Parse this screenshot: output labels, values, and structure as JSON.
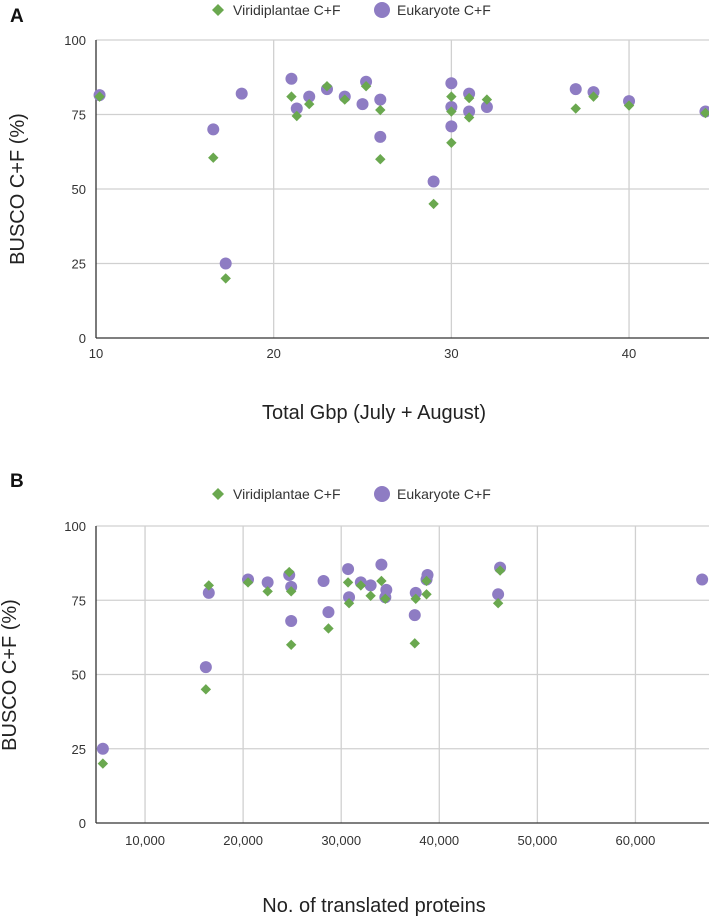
{
  "colors": {
    "viridiplantae": "#6aa84f",
    "eukaryote": "#8e7cc3",
    "grid": "#d0d0d0"
  },
  "chart_data": [
    {
      "panel": "A",
      "type": "scatter",
      "title": "",
      "xlabel": "Total Gbp (July + August)",
      "ylabel": "BUSCO C+F (%)",
      "xlim": [
        10,
        44.5
      ],
      "ylim": [
        0,
        100
      ],
      "xticks": [
        10,
        20,
        30,
        40
      ],
      "xtick_labels": [
        "10",
        "20",
        "30",
        "40"
      ],
      "yticks": [
        0,
        25,
        50,
        75,
        100
      ],
      "ytick_labels": [
        "0",
        "25",
        "50",
        "75",
        "100"
      ],
      "legend": "top-center",
      "series": [
        {
          "name": "Viridiplantae C+F",
          "marker": "diamond",
          "points": [
            [
              10.2,
              81
            ],
            [
              16.6,
              60.5
            ],
            [
              17.3,
              20
            ],
            [
              21.0,
              81
            ],
            [
              21.3,
              74.5
            ],
            [
              22.0,
              78.5
            ],
            [
              23.0,
              84.5
            ],
            [
              24.0,
              80
            ],
            [
              25.2,
              84.5
            ],
            [
              26.0,
              60
            ],
            [
              26.0,
              76.5
            ],
            [
              29.0,
              45
            ],
            [
              30.0,
              65.5
            ],
            [
              30.0,
              76
            ],
            [
              30.0,
              81
            ],
            [
              31.0,
              74
            ],
            [
              31.0,
              80.5
            ],
            [
              32.0,
              80
            ],
            [
              37.0,
              77
            ],
            [
              38.0,
              81
            ],
            [
              40.0,
              78
            ],
            [
              44.3,
              75.5
            ]
          ]
        },
        {
          "name": "Eukaryote C+F",
          "marker": "circle",
          "points": [
            [
              10.2,
              81.5
            ],
            [
              16.6,
              70
            ],
            [
              17.3,
              25
            ],
            [
              18.2,
              82
            ],
            [
              21.0,
              87
            ],
            [
              21.3,
              77
            ],
            [
              22.0,
              81
            ],
            [
              23.0,
              83.5
            ],
            [
              24.0,
              81
            ],
            [
              25.0,
              78.5
            ],
            [
              25.2,
              86
            ],
            [
              26.0,
              67.5
            ],
            [
              26.0,
              80
            ],
            [
              29.0,
              52.5
            ],
            [
              30.0,
              71
            ],
            [
              30.0,
              77.5
            ],
            [
              30.0,
              85.5
            ],
            [
              31.0,
              76
            ],
            [
              31.0,
              82
            ],
            [
              32.0,
              77.5
            ],
            [
              37.0,
              83.5
            ],
            [
              38.0,
              82.5
            ],
            [
              40.0,
              79.5
            ],
            [
              44.3,
              76
            ]
          ]
        }
      ]
    },
    {
      "panel": "B",
      "type": "scatter",
      "title": "",
      "xlabel": "No. of translated proteins",
      "ylabel": "BUSCO C+F (%)",
      "xlim": [
        5000,
        67500
      ],
      "ylim": [
        0,
        100
      ],
      "xticks": [
        10000,
        20000,
        30000,
        40000,
        50000,
        60000
      ],
      "xtick_labels": [
        "10,000",
        "20,000",
        "30,000",
        "40,000",
        "50,000",
        "60,000"
      ],
      "yticks": [
        0,
        25,
        50,
        75,
        100
      ],
      "ytick_labels": [
        "0",
        "25",
        "50",
        "75",
        "100"
      ],
      "legend": "top-center",
      "series": [
        {
          "name": "Viridiplantae C+F",
          "marker": "diamond",
          "points": [
            [
              5700,
              20
            ],
            [
              16200,
              45
            ],
            [
              16500,
              80
            ],
            [
              20500,
              81
            ],
            [
              22500,
              78
            ],
            [
              24700,
              84.5
            ],
            [
              24900,
              60
            ],
            [
              24900,
              78
            ],
            [
              28700,
              65.5
            ],
            [
              30700,
              81
            ],
            [
              30800,
              74
            ],
            [
              32000,
              80
            ],
            [
              33000,
              76.5
            ],
            [
              34100,
              81.5
            ],
            [
              34500,
              75.5
            ],
            [
              37500,
              60.5
            ],
            [
              37600,
              75.5
            ],
            [
              38700,
              77
            ],
            [
              38700,
              81.5
            ],
            [
              46000,
              74
            ],
            [
              46200,
              85
            ]
          ]
        },
        {
          "name": "Eukaryote C+F",
          "marker": "circle",
          "points": [
            [
              5700,
              25
            ],
            [
              16200,
              52.5
            ],
            [
              16500,
              77.5
            ],
            [
              20500,
              82
            ],
            [
              22500,
              81
            ],
            [
              24700,
              83.5
            ],
            [
              24900,
              68
            ],
            [
              24900,
              79.5
            ],
            [
              28200,
              81.5
            ],
            [
              28700,
              71
            ],
            [
              30700,
              85.5
            ],
            [
              30800,
              76
            ],
            [
              32000,
              81
            ],
            [
              33000,
              80
            ],
            [
              34100,
              87
            ],
            [
              34500,
              76
            ],
            [
              34600,
              78.5
            ],
            [
              37500,
              70
            ],
            [
              37600,
              77.5
            ],
            [
              38700,
              82
            ],
            [
              38800,
              83.5
            ],
            [
              46000,
              77
            ],
            [
              46200,
              86
            ],
            [
              66800,
              82
            ]
          ]
        }
      ]
    }
  ]
}
